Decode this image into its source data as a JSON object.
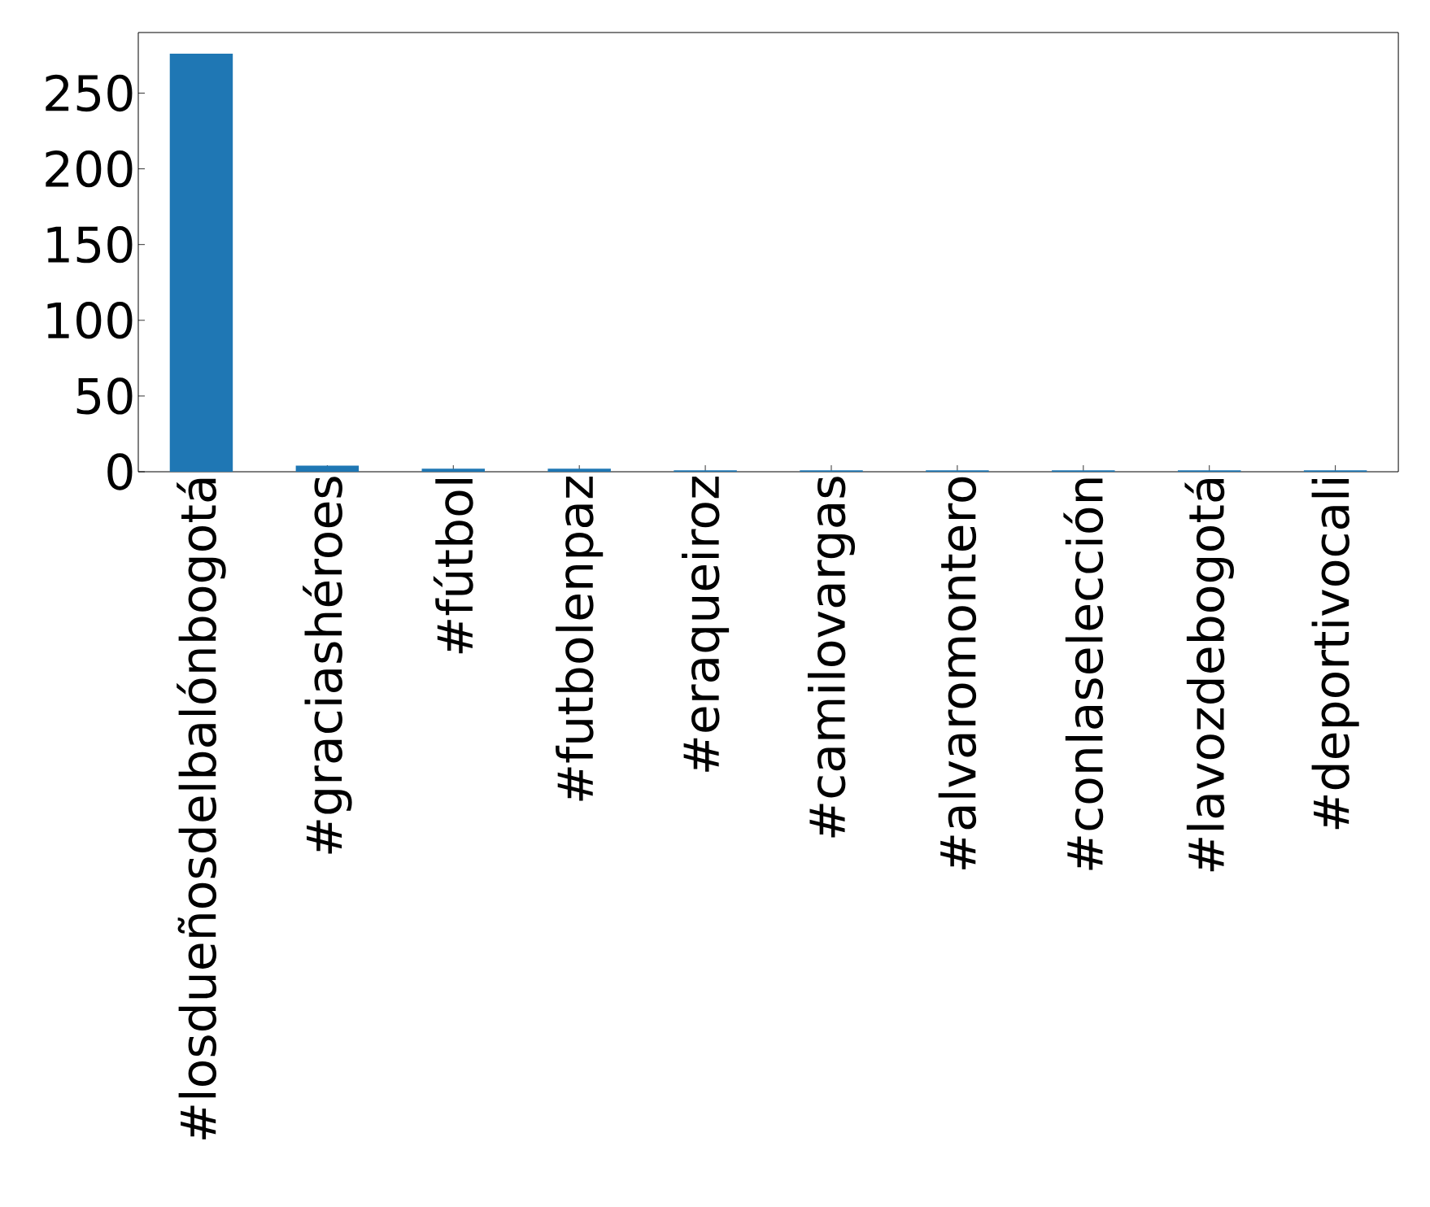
{
  "chart_data": {
    "type": "bar",
    "categories": [
      "#losdueñosdelbalónbogotá",
      "#graciashéroes",
      "#fútbol",
      "#futbolenpaz",
      "#eraqueiroz",
      "#camilovargas",
      "#alvaromontero",
      "#conlaselección",
      "#lavozdebogotá",
      "#deportivocali"
    ],
    "values": [
      276,
      4,
      2,
      2,
      1,
      1,
      1,
      1,
      1,
      1
    ],
    "color": "#1f77b4",
    "ylim": [
      0,
      290
    ],
    "yticks": [
      0,
      50,
      100,
      150,
      200,
      250
    ],
    "grid": false
  }
}
